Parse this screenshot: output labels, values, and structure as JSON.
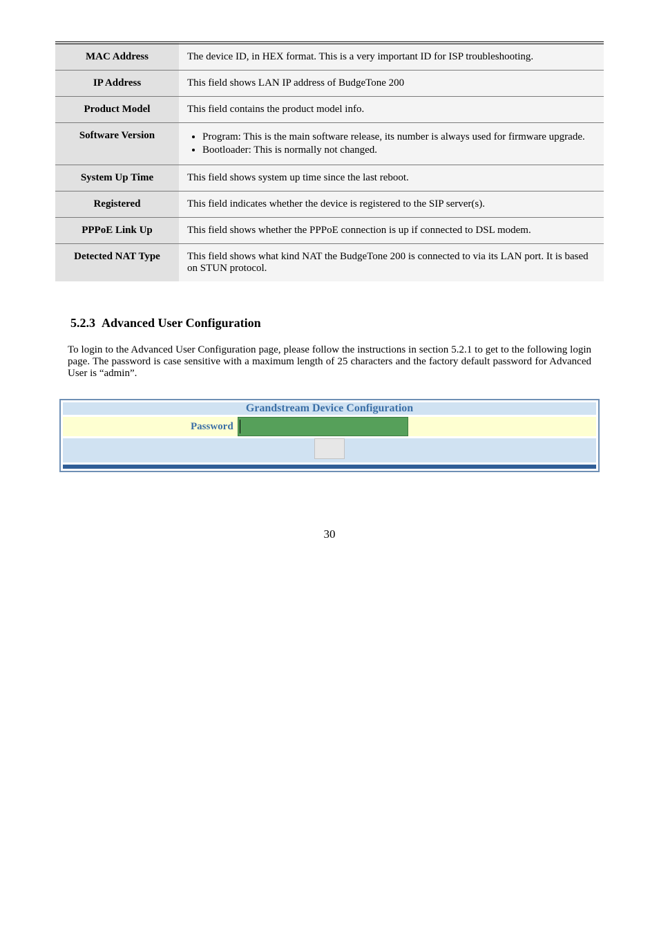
{
  "table": {
    "rows": [
      {
        "label": "MAC Address",
        "desc": "The device ID, in HEX format.  This is a very important ID for ISP troubleshooting."
      },
      {
        "label": "IP Address",
        "desc": "This field shows LAN IP address of BudgeTone 200"
      },
      {
        "label": "Product Model",
        "desc": "This field contains the product model info."
      },
      {
        "label": "Software Version",
        "bullets": [
          "Program: This is the main software release, its number is always used for firmware upgrade.",
          "Bootloader: This is normally not changed."
        ]
      },
      {
        "label": "System Up Time",
        "desc": "This field shows system up time since the last reboot."
      },
      {
        "label": "Registered",
        "desc": "This field indicates whether the device is registered to the SIP server(s)."
      },
      {
        "label": "PPPoE Link Up",
        "desc": "This field shows whether the PPPoE connection is up if connected to DSL modem."
      },
      {
        "label": "Detected NAT Type",
        "desc": "This field shows what kind NAT the BudgeTone 200 is connected to via its LAN port.  It is based on STUN protocol."
      }
    ]
  },
  "section": {
    "number": "5.2.3",
    "title": "Advanced User Configuration"
  },
  "body": "To login to the Advanced User Configuration page, please follow the instructions in section 5.2.1 to get to the following login page. The password is case sensitive with a maximum length of 25 characters and the factory default password for Advanced User is “admin”.",
  "config": {
    "header": "Grandstream Device Configuration",
    "password_label": "Password"
  },
  "page_number": "30"
}
